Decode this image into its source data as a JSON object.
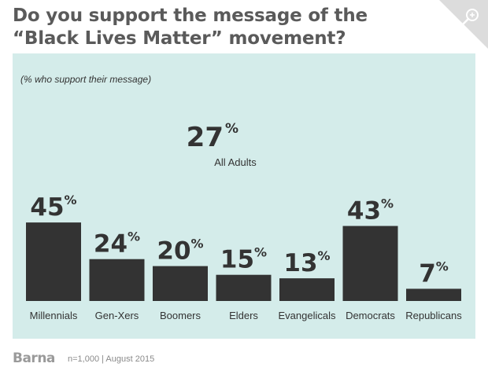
{
  "title": "Do you support the message of the “Black Lives Matter” movement?",
  "subtitle": "(% who support their message)",
  "overall": {
    "value": "27",
    "unit": "%",
    "label": "All Adults"
  },
  "footer": {
    "brand": "Barna",
    "note": "n=1,000 | August 2015"
  },
  "colors": {
    "panel": "#d4ecea",
    "bar": "#333333",
    "text": "#333333"
  },
  "icons": {
    "zoom": "zoom-in-icon"
  },
  "chart_data": {
    "type": "bar",
    "title": "Do you support the message of the “Black Lives Matter” movement?",
    "ylabel": "(% who support their message)",
    "categories": [
      "Millennials",
      "Gen-Xers",
      "Boomers",
      "Elders",
      "Evangelicals",
      "Democrats",
      "Republicans"
    ],
    "values": [
      45,
      24,
      20,
      15,
      13,
      43,
      7
    ],
    "unit": "%",
    "ylim": [
      0,
      45
    ],
    "grid": false,
    "legend": "none"
  }
}
